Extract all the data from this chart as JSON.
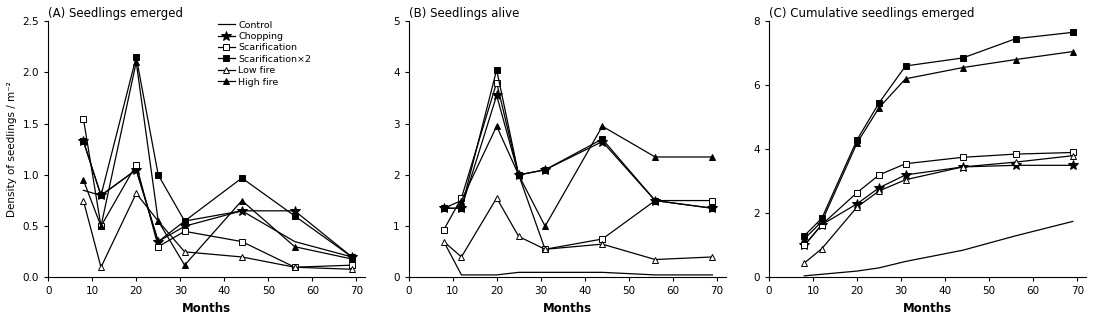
{
  "months_A": [
    8,
    12,
    20,
    25,
    31,
    44,
    56,
    69
  ],
  "months_B": [
    8,
    12,
    20,
    25,
    31,
    44,
    56,
    69
  ],
  "months_C": [
    8,
    12,
    20,
    25,
    31,
    44,
    56,
    69
  ],
  "A_control": [
    0.85,
    0.8,
    1.05,
    0.35,
    0.55,
    0.65,
    0.35,
    0.2
  ],
  "A_chopping": [
    1.33,
    0.8,
    1.05,
    0.35,
    0.5,
    0.65,
    0.65,
    0.2
  ],
  "A_scarif": [
    1.55,
    0.5,
    1.1,
    0.3,
    0.45,
    0.35,
    0.1,
    0.12
  ],
  "A_scarif2": [
    1.33,
    0.8,
    2.15,
    1.0,
    0.55,
    0.97,
    0.6,
    0.2
  ],
  "A_lowfire": [
    0.75,
    0.1,
    0.82,
    0.55,
    0.25,
    0.2,
    0.1,
    0.08
  ],
  "A_highfire": [
    0.95,
    0.5,
    2.1,
    0.55,
    0.12,
    0.75,
    0.3,
    0.18
  ],
  "B_control": [
    0.7,
    0.05,
    0.05,
    0.1,
    0.1,
    0.1,
    0.05,
    0.05
  ],
  "B_chopping": [
    1.35,
    1.35,
    3.55,
    2.0,
    2.1,
    2.65,
    1.5,
    1.35
  ],
  "B_scarif": [
    0.93,
    1.55,
    3.8,
    2.0,
    0.55,
    0.75,
    1.5,
    1.5
  ],
  "B_scarif2": [
    1.35,
    1.35,
    4.05,
    2.0,
    2.1,
    2.7,
    1.5,
    1.35
  ],
  "B_lowfire": [
    0.7,
    0.4,
    1.55,
    0.8,
    0.55,
    0.65,
    0.35,
    0.4
  ],
  "B_highfire": [
    1.35,
    1.5,
    2.95,
    2.0,
    1.0,
    2.95,
    2.35,
    2.35
  ],
  "C_control": [
    0.05,
    0.1,
    0.2,
    0.3,
    0.5,
    0.85,
    1.3,
    1.75
  ],
  "C_chopping": [
    1.0,
    1.65,
    2.3,
    2.8,
    3.2,
    3.45,
    3.5,
    3.5
  ],
  "C_scarif": [
    1.0,
    1.65,
    2.65,
    3.2,
    3.55,
    3.75,
    3.85,
    3.9
  ],
  "C_scarif2": [
    1.3,
    1.85,
    4.3,
    5.45,
    6.6,
    6.85,
    7.45,
    7.65
  ],
  "C_lowfire": [
    0.45,
    0.9,
    2.2,
    2.7,
    3.05,
    3.45,
    3.6,
    3.8
  ],
  "C_highfire": [
    1.2,
    1.75,
    4.2,
    5.3,
    6.2,
    6.55,
    6.8,
    7.05
  ],
  "panel_A_title": "(A) Seedlings emerged",
  "panel_B_title": "(B) Seedlings alive",
  "panel_C_title": "(C) Cumulative seedlings emerged",
  "xlabel": "Months",
  "ylabel_A": "Density of seedlings / m⁻²",
  "legend_labels": [
    "Control",
    "Chopping",
    "Scarification",
    "Scarification×2",
    "Low fire",
    "High fire"
  ],
  "bg_color": "#ffffff",
  "A_ylim": [
    0,
    2.5
  ],
  "A_yticks": [
    0.0,
    0.5,
    1.0,
    1.5,
    2.0,
    2.5
  ],
  "B_ylim": [
    0,
    5
  ],
  "B_yticks": [
    0,
    1,
    2,
    3,
    4,
    5
  ],
  "C_ylim": [
    0,
    8
  ],
  "C_yticks": [
    0,
    2,
    4,
    6,
    8
  ],
  "xticks": [
    0,
    10,
    20,
    30,
    40,
    50,
    60,
    70
  ],
  "xlim": [
    0,
    72
  ]
}
